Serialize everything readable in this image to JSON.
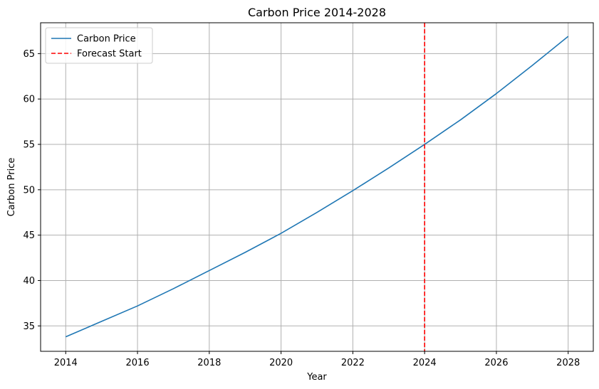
{
  "chart_data": {
    "type": "line",
    "title": "Carbon Price 2014-2028",
    "xlabel": "Year",
    "ylabel": "Carbon Price",
    "xlim": [
      2013.3,
      2028.7
    ],
    "ylim": [
      32.2,
      68.4
    ],
    "xticks": [
      2014,
      2016,
      2018,
      2020,
      2022,
      2024,
      2026,
      2028
    ],
    "yticks": [
      35,
      40,
      45,
      50,
      55,
      60,
      65
    ],
    "grid": true,
    "legend_position": "top-left",
    "series": [
      {
        "name": "Carbon Price",
        "color": "#1f77b4",
        "style": "solid",
        "x": [
          2014,
          2015,
          2016,
          2017,
          2018,
          2019,
          2020,
          2021,
          2022,
          2023,
          2024,
          2025,
          2026,
          2027,
          2028
        ],
        "y": [
          33.8,
          35.5,
          37.2,
          39.1,
          41.1,
          43.1,
          45.2,
          47.5,
          49.9,
          52.4,
          55.0,
          57.7,
          60.6,
          63.7,
          66.9
        ]
      }
    ],
    "vlines": [
      {
        "name": "Forecast Start",
        "x": 2024,
        "color": "#ff0000",
        "style": "dashed"
      }
    ]
  }
}
